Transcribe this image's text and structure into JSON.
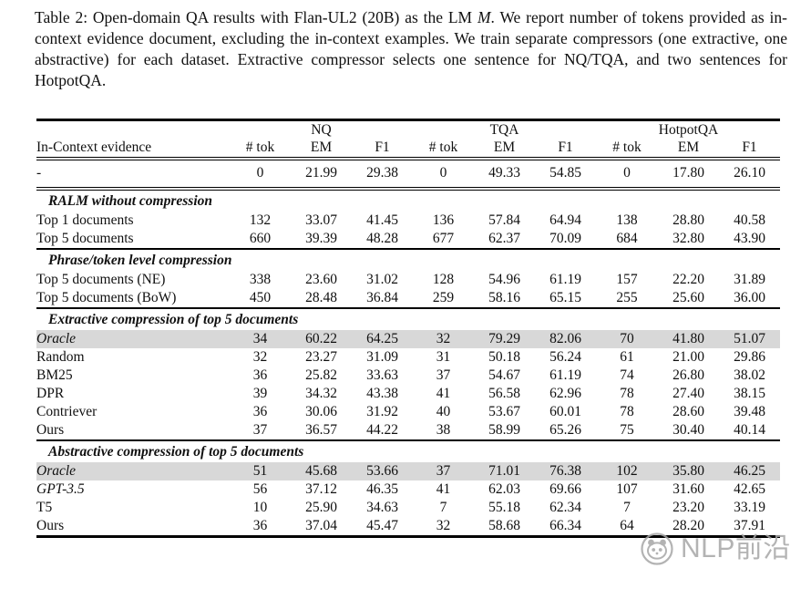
{
  "caption": {
    "part1": "Table 2: Open-domain QA results with Flan-UL2 (20B) as the LM ",
    "math_var": "M",
    "part2": ". We report number of tokens provided as in-context evidence document, excluding the in-context examples. We train separate compressors (one extractive, one abstractive) for each dataset. Extractive compressor selects one sentence for NQ/TQA, and two sentences for HotpotQA."
  },
  "chart_data": {
    "type": "table",
    "title": "Open-domain QA results with Flan-UL2 (20B)",
    "column_groups": [
      "NQ",
      "TQA",
      "HotpotQA"
    ],
    "columns": [
      "In-Context evidence",
      "# tok",
      "EM",
      "F1",
      "# tok",
      "EM",
      "F1",
      "# tok",
      "EM",
      "F1"
    ]
  },
  "table": {
    "groups": [
      "NQ",
      "TQA",
      "HotpotQA"
    ],
    "header": {
      "evidence": "In-Context evidence",
      "tok": "# tok",
      "em": "EM",
      "f1": "F1"
    },
    "sections": [
      {
        "title": "",
        "rows": [
          {
            "label": "-",
            "values": [
              "0",
              "21.99",
              "29.38",
              "0",
              "49.33",
              "54.85",
              "0",
              "17.80",
              "26.10"
            ]
          }
        ]
      },
      {
        "title": "RALM without compression",
        "rows": [
          {
            "label": "Top 1 documents",
            "values": [
              "132",
              "33.07",
              "41.45",
              "136",
              "57.84",
              "64.94",
              "138",
              "28.80",
              "40.58"
            ]
          },
          {
            "label": "Top 5 documents",
            "values": [
              "660",
              "39.39",
              "48.28",
              "677",
              "62.37",
              "70.09",
              "684",
              "32.80",
              "43.90"
            ],
            "bold": [
              1,
              2,
              4,
              5,
              7,
              8
            ]
          }
        ]
      },
      {
        "title": "Phrase/token level compression",
        "rows": [
          {
            "label": "Top 5 documents (NE)",
            "values": [
              "338",
              "23.60",
              "31.02",
              "128",
              "54.96",
              "61.19",
              "157",
              "22.20",
              "31.89"
            ]
          },
          {
            "label": "Top 5 documents (BoW)",
            "values": [
              "450",
              "28.48",
              "36.84",
              "259",
              "58.16",
              "65.15",
              "255",
              "25.60",
              "36.00"
            ]
          }
        ]
      },
      {
        "title": "Extractive compression of top 5 documents",
        "rows": [
          {
            "label": "Oracle",
            "italic": true,
            "highlight": true,
            "values": [
              "34",
              "60.22",
              "64.25",
              "32",
              "79.29",
              "82.06",
              "70",
              "41.80",
              "51.07"
            ]
          },
          {
            "label": "Random",
            "values": [
              "32",
              "23.27",
              "31.09",
              "31",
              "50.18",
              "56.24",
              "61",
              "21.00",
              "29.86"
            ]
          },
          {
            "label": "BM25",
            "values": [
              "36",
              "25.82",
              "33.63",
              "37",
              "54.67",
              "61.19",
              "74",
              "26.80",
              "38.02"
            ]
          },
          {
            "label": "DPR",
            "values": [
              "39",
              "34.32",
              "43.38",
              "41",
              "56.58",
              "62.96",
              "78",
              "27.40",
              "38.15"
            ]
          },
          {
            "label": "Contriever",
            "values": [
              "36",
              "30.06",
              "31.92",
              "40",
              "53.67",
              "60.01",
              "78",
              "28.60",
              "39.48"
            ]
          },
          {
            "label": "Ours",
            "values": [
              "37",
              "36.57",
              "44.22",
              "38",
              "58.99",
              "65.26",
              "75",
              "30.40",
              "40.14"
            ],
            "bold": [
              4,
              7,
              8
            ]
          }
        ]
      },
      {
        "title": "Abstractive compression of top 5 documents",
        "rows": [
          {
            "label": "Oracle",
            "italic": true,
            "highlight": true,
            "values": [
              "51",
              "45.68",
              "53.66",
              "37",
              "71.01",
              "76.38",
              "102",
              "35.80",
              "46.25"
            ]
          },
          {
            "label": "GPT-3.5",
            "italic": true,
            "values": [
              "56",
              "37.12",
              "46.35",
              "41",
              "62.03",
              "69.66",
              "107",
              "31.60",
              "42.65"
            ]
          },
          {
            "label": "T5",
            "values": [
              "10",
              "25.90",
              "34.63",
              "7",
              "55.18",
              "62.34",
              "7",
              "23.20",
              "33.19"
            ],
            "bold": [
              0,
              3,
              6
            ]
          },
          {
            "label": "Ours",
            "values": [
              "36",
              "37.04",
              "45.47",
              "32",
              "58.68",
              "66.34",
              "64",
              "28.20",
              "37.91"
            ],
            "bold": [
              1,
              2,
              5
            ]
          }
        ]
      }
    ]
  },
  "watermark": {
    "text": "NLP前沿"
  },
  "colors": {
    "highlight": "#d8d8d8",
    "rule": "#000000",
    "watermark": "#a6a6a6",
    "background": "#ffffff"
  }
}
